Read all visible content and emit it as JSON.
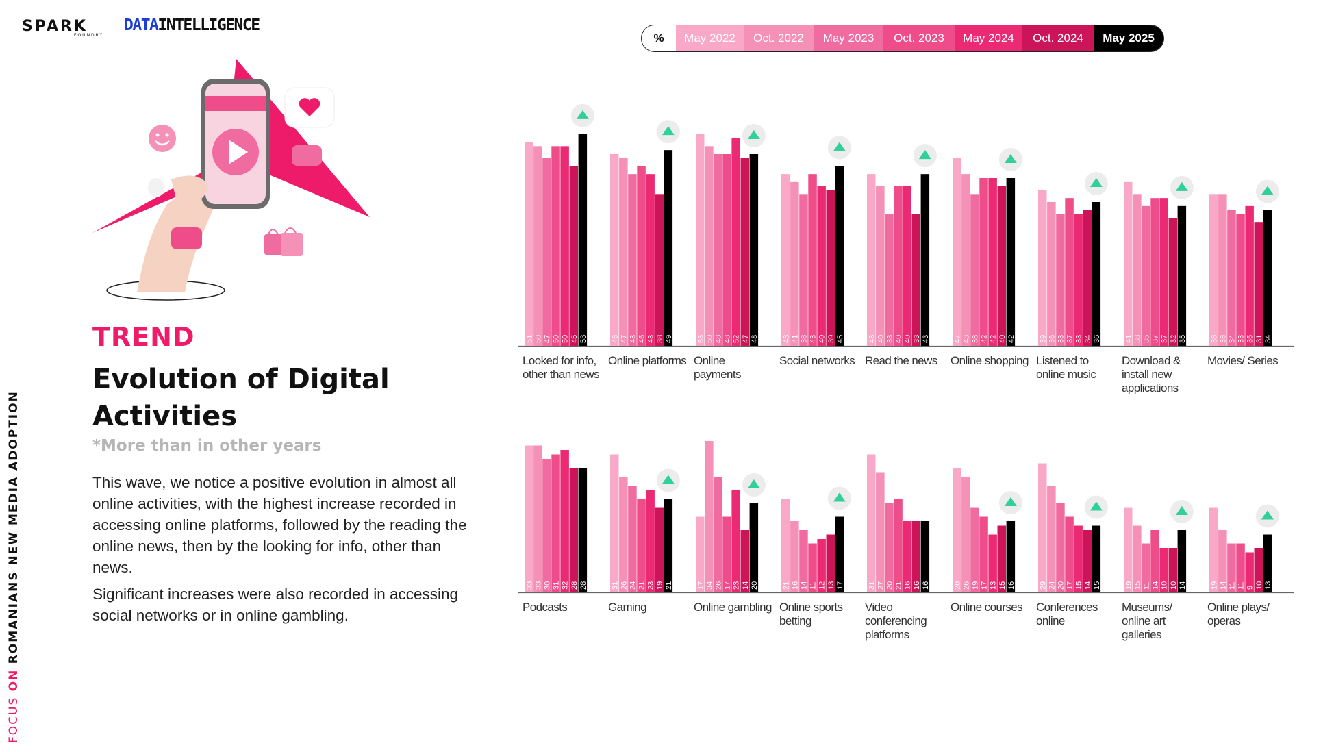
{
  "brand": {
    "spark": "SPARK",
    "spark_sub": "FOUNDRY",
    "data_part1": "DATA",
    "data_part2": "INTELLIGENCE"
  },
  "side_label": {
    "part1": "FOCUS",
    "part2": "ON",
    "part3": "ROMANIANS NEW MEDIA ADOPTION"
  },
  "header": {
    "kicker": "TREND",
    "title": "Evolution of Digital Activities",
    "note": "*More than in other years"
  },
  "body": {
    "paragraph1": "This wave, we notice a positive evolution in almost all online activities, with the highest increase recorded in accessing online platforms, followed by the reading the online news, then by the looking for info, other than news.",
    "paragraph2": "Significant increases were also recorded in accessing social networks or in online gambling."
  },
  "legend": {
    "unit": "%",
    "waves": [
      "May 2022",
      "Oct. 2022",
      "May 2023",
      "Oct. 2023",
      "May 2024",
      "Oct. 2024",
      "May 2025"
    ],
    "colors": [
      "#f9a8c8",
      "#f590b6",
      "#f06ca0",
      "#ee4d8a",
      "#eb2a73",
      "#cc1458",
      "#000000"
    ]
  },
  "icons": [
    "up-arrow-icon"
  ],
  "chart_data": [
    {
      "type": "bar",
      "series_names": [
        "May 2022",
        "Oct. 2022",
        "May 2023",
        "Oct. 2023",
        "May 2024",
        "Oct. 2024",
        "May 2025"
      ],
      "ylim": [
        0,
        60
      ],
      "groups": [
        {
          "label": "Looked for info, other than news",
          "values": [
            51,
            50,
            47,
            50,
            50,
            45,
            53
          ],
          "highlight": true
        },
        {
          "label": "Online platforms",
          "values": [
            48,
            47,
            43,
            45,
            43,
            38,
            49
          ],
          "highlight": true
        },
        {
          "label": "Online payments",
          "values": [
            53,
            50,
            48,
            48,
            52,
            47,
            48
          ],
          "highlight": true
        },
        {
          "label": "Social networks",
          "values": [
            43,
            41,
            38,
            43,
            40,
            39,
            45
          ],
          "highlight": true
        },
        {
          "label": "Read the news",
          "values": [
            43,
            40,
            33,
            40,
            40,
            33,
            43
          ],
          "highlight": true
        },
        {
          "label": "Online shopping",
          "values": [
            47,
            43,
            38,
            42,
            42,
            40,
            42
          ],
          "highlight": true
        },
        {
          "label": "Listened to online music",
          "values": [
            39,
            36,
            33,
            37,
            33,
            34,
            36
          ],
          "highlight": true
        },
        {
          "label": "Download & install new applications",
          "values": [
            41,
            38,
            35,
            37,
            37,
            32,
            35
          ],
          "highlight": true
        },
        {
          "label": "Movies/ Series",
          "values": [
            38,
            38,
            34,
            33,
            35,
            31,
            34
          ],
          "highlight": true
        }
      ]
    },
    {
      "type": "bar",
      "series_names": [
        "May 2022",
        "Oct. 2022",
        "May 2023",
        "Oct. 2023",
        "May 2024",
        "Oct. 2024",
        "May 2025"
      ],
      "ylim": [
        0,
        40
      ],
      "groups": [
        {
          "label": "Podcasts",
          "values": [
            33,
            33,
            30,
            31,
            32,
            28,
            28
          ],
          "highlight": false
        },
        {
          "label": "Gaming",
          "values": [
            31,
            26,
            24,
            21,
            23,
            19,
            21
          ],
          "highlight": true
        },
        {
          "label": "Online gambling",
          "values": [
            17,
            34,
            26,
            17,
            23,
            14,
            20
          ],
          "highlight": true
        },
        {
          "label": "Online sports betting",
          "values": [
            21,
            16,
            14,
            11,
            12,
            13,
            17
          ],
          "highlight": true
        },
        {
          "label": "Video conferencing platforms",
          "values": [
            31,
            27,
            20,
            21,
            16,
            16,
            16
          ],
          "highlight": false
        },
        {
          "label": "Online courses",
          "values": [
            28,
            26,
            19,
            17,
            13,
            15,
            16
          ],
          "highlight": true
        },
        {
          "label": "Conferences online",
          "values": [
            29,
            24,
            20,
            17,
            15,
            14,
            15
          ],
          "highlight": true
        },
        {
          "label": "Museums/ online art galleries",
          "values": [
            19,
            15,
            11,
            14,
            10,
            10,
            14
          ],
          "highlight": true
        },
        {
          "label": "Online plays/ operas",
          "values": [
            19,
            14,
            11,
            11,
            9,
            10,
            13
          ],
          "highlight": true
        }
      ]
    }
  ]
}
